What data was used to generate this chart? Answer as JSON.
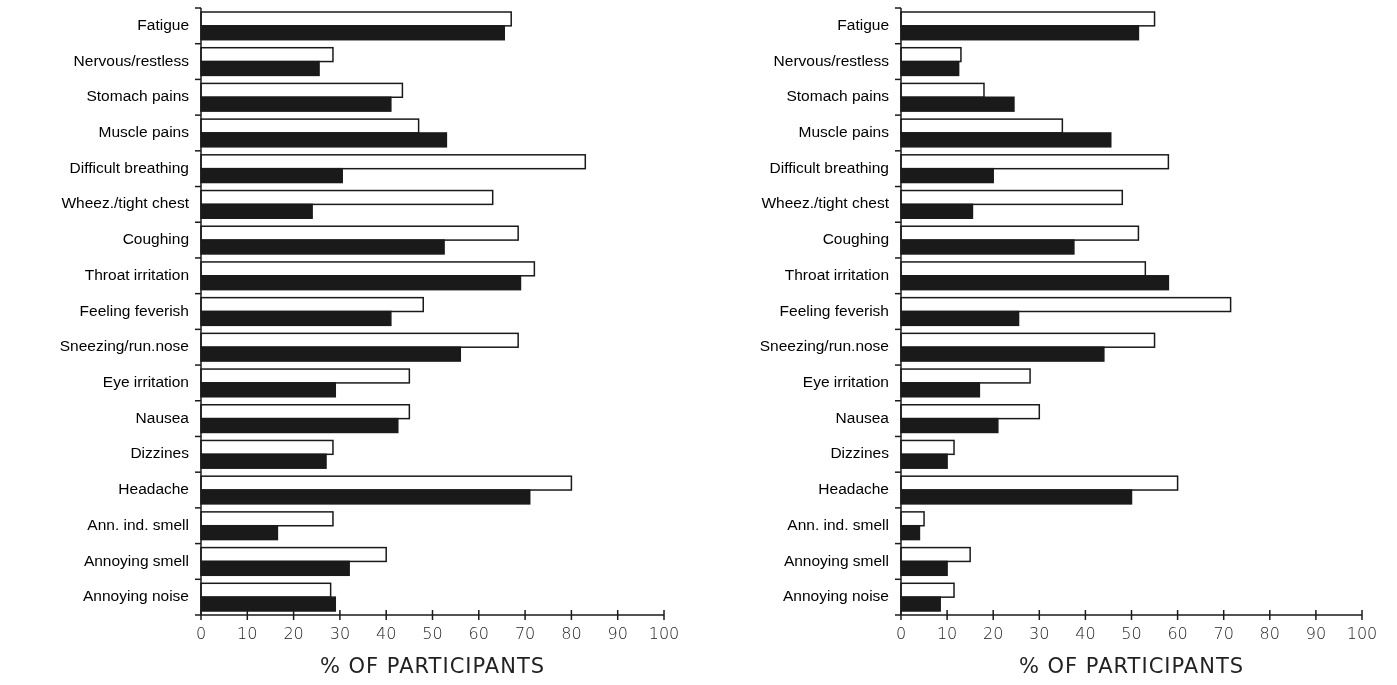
{
  "chart_data": [
    {
      "type": "bar",
      "orientation": "horizontal",
      "xlabel": "% OF PARTICIPANTS",
      "categories": [
        "Fatigue",
        "Nervous/restless",
        "Stomach pains",
        "Muscle pains",
        "Difficult breathing",
        "Wheez./tight chest",
        "Coughing",
        "Throat irritation",
        "Feeling feverish",
        "Sneezing/run.nose",
        "Eye irritation",
        "Nausea",
        "Dizzines",
        "Headache",
        "Ann. ind. smell",
        "Annoying smell",
        "Annoying noise"
      ],
      "series": [
        {
          "color": "#ffffff",
          "values": [
            67,
            28.5,
            43.5,
            47,
            83,
            63,
            68.5,
            72,
            48,
            68.5,
            45,
            45,
            28.5,
            80,
            28.5,
            40,
            28
          ]
        },
        {
          "color": "#1a1a1a",
          "values": [
            65.5,
            25.5,
            41,
            53,
            30.5,
            24,
            52.5,
            69,
            41,
            56,
            29,
            42.5,
            27,
            71,
            16.5,
            32,
            29
          ]
        }
      ],
      "xlim": [
        0,
        100
      ],
      "xticks": [
        0,
        10,
        20,
        30,
        40,
        50,
        60,
        70,
        80,
        90,
        100
      ],
      "grid": false
    },
    {
      "type": "bar",
      "orientation": "horizontal",
      "xlabel": "% OF PARTICIPANTS",
      "categories": [
        "Fatigue",
        "Nervous/restless",
        "Stomach pains",
        "Muscle pains",
        "Difficult breathing",
        "Wheez./tight chest",
        "Coughing",
        "Throat irritation",
        "Feeling feverish",
        "Sneezing/run.nose",
        "Eye irritation",
        "Nausea",
        "Dizzines",
        "Headache",
        "Ann. ind. smell",
        "Annoying smell",
        "Annoying noise"
      ],
      "series": [
        {
          "color": "#ffffff",
          "values": [
            55,
            13,
            18,
            35,
            58,
            48,
            51.5,
            53,
            71.5,
            55,
            28,
            30,
            11.5,
            60,
            5,
            15,
            11.5
          ]
        },
        {
          "color": "#1a1a1a",
          "values": [
            51.5,
            12.5,
            24.5,
            45.5,
            20,
            15.5,
            37.5,
            58,
            25.5,
            44,
            17,
            21,
            10,
            50,
            4,
            10,
            8.5
          ]
        }
      ],
      "xlim": [
        0,
        100
      ],
      "xticks": [
        0,
        10,
        20,
        30,
        40,
        50,
        60,
        70,
        80,
        90,
        100
      ],
      "grid": false
    }
  ]
}
